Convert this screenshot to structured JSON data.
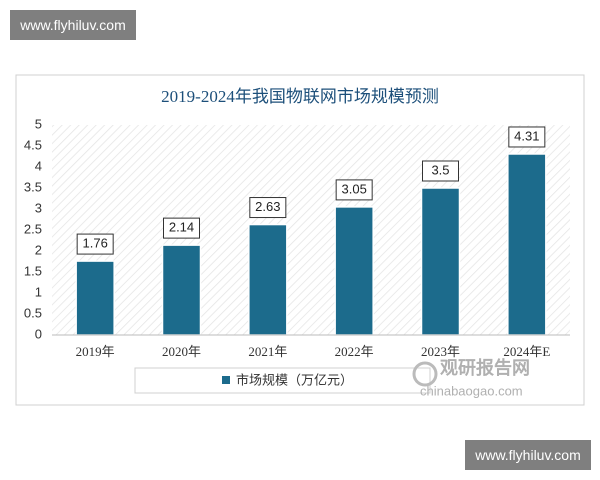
{
  "watermarks": [
    "www.flyhiluv.com",
    "www.flyhiluv.com"
  ],
  "source_logo": {
    "name": "观研报告网",
    "url": "chinabaogao.com"
  },
  "chart_data": {
    "type": "bar",
    "title": "2019-2024年我国物联网市场规模预测",
    "categories": [
      "2019年",
      "2020年",
      "2021年",
      "2022年",
      "2023年",
      "2024年E"
    ],
    "series": [
      {
        "name": "市场规模（万亿元）",
        "color": "#1c6b8c",
        "values": [
          1.76,
          2.14,
          2.63,
          3.05,
          3.5,
          4.31
        ]
      }
    ],
    "ylim": [
      0,
      5
    ],
    "yticks": [
      0,
      0.5,
      1,
      1.5,
      2,
      2.5,
      3,
      3.5,
      4,
      4.5,
      5
    ],
    "legend": "bottom"
  }
}
